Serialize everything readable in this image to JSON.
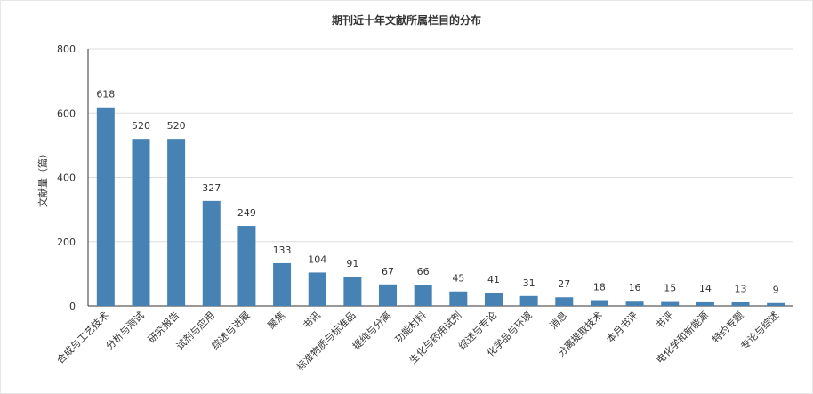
{
  "chart_data": {
    "type": "bar",
    "title": "期刊近十年文献所属栏目的分布",
    "xlabel": "",
    "ylabel": "文献量（篇）",
    "ylim": [
      0,
      800
    ],
    "yticks": [
      0,
      200,
      400,
      600,
      800
    ],
    "grid": true,
    "legend": "none",
    "bar_color": "#4682b4",
    "categories": [
      "合成与工艺技术",
      "分析与测试",
      "研究报告",
      "试剂与应用",
      "综述与进展",
      "聚焦",
      "书讯",
      "标准物质与标准品",
      "提纯与分离",
      "功能材料",
      "生化与药用试剂",
      "综述与专论",
      "化学品与环境",
      "消息",
      "分离提取技术",
      "本月书评",
      "书评",
      "电化学和新能源",
      "特约专题",
      "专论与综述"
    ],
    "values": [
      618,
      520,
      520,
      327,
      249,
      133,
      104,
      91,
      67,
      66,
      45,
      41,
      31,
      27,
      18,
      16,
      15,
      14,
      13,
      9
    ]
  }
}
